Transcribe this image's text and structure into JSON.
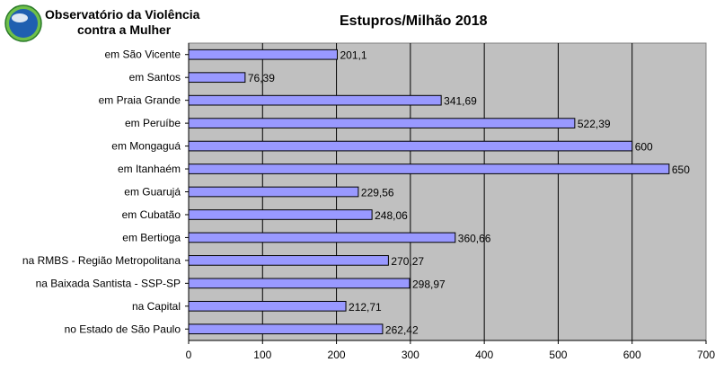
{
  "header": {
    "org_line_1": "Observatório da Violência",
    "org_line_2": "contra a Mulher"
  },
  "chart_data": {
    "type": "bar",
    "orientation": "horizontal",
    "title": "Estupros/Milhão 2018",
    "xlabel": "",
    "ylabel": "",
    "xlim": [
      0,
      700
    ],
    "xticks": [
      "0",
      "100",
      "200",
      "300",
      "400",
      "500",
      "600",
      "700"
    ],
    "grid": true,
    "legend": "none",
    "categories": [
      "em São Vicente",
      "em Santos",
      "em Praia Grande",
      "em Peruíbe",
      "em Mongaguá",
      "em Itanhaém",
      "em Guarujá",
      "em Cubatão",
      "em Bertioga",
      "na RMBS - Região Metropolitana",
      "na Baixada Santista - SSP-SP",
      "na Capital",
      "no Estado de São Paulo"
    ],
    "values": [
      201.1,
      76.39,
      341.69,
      522.39,
      600,
      650,
      229.56,
      248.06,
      360.66,
      270.27,
      298.97,
      212.71,
      262.42
    ],
    "value_labels": [
      "201,1",
      "76,39",
      "341,69",
      "522,39",
      "600",
      "650",
      "229,56",
      "248,06",
      "360,66",
      "270,27",
      "298,97",
      "212,71",
      "262,42"
    ],
    "colors": {
      "bar_fill": "#9999ff",
      "bar_stroke": "#000000",
      "plot_background": "#c0c0c0",
      "gridline": "#000000"
    }
  },
  "logo": {
    "icon": "globe-logo-icon",
    "colors": [
      "#1f5fb0",
      "#6fc04a",
      "#ffffff"
    ]
  }
}
